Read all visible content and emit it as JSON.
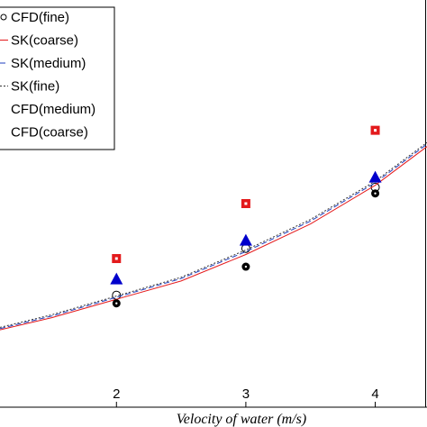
{
  "chart_data": {
    "type": "line",
    "xlabel": "Velocity of water (m/s)",
    "ylabel": "",
    "xlim": [
      1.1,
      4.4
    ],
    "ylim": [
      0,
      1
    ],
    "x_ticks": [
      2,
      3,
      4
    ],
    "grid": false,
    "legend_position": "top-left",
    "series": [
      {
        "name": "CFD(fine)",
        "kind": "markers",
        "marker": "circle-open",
        "color": "#000000",
        "x": [
          2,
          3,
          4
        ],
        "y": [
          0.275,
          0.39,
          0.54
        ]
      },
      {
        "name": "SK(coarse)",
        "kind": "line",
        "dash": "solid",
        "color": "#e41a1c",
        "x": [
          1.1,
          1.5,
          2,
          2.5,
          3,
          3.5,
          4,
          4.4
        ],
        "y": [
          0.19,
          0.22,
          0.265,
          0.31,
          0.375,
          0.45,
          0.545,
          0.64
        ]
      },
      {
        "name": "SK(medium)",
        "kind": "line",
        "dash": "dash",
        "color": "#1f3fbf",
        "x": [
          1.1,
          1.5,
          2,
          2.5,
          3,
          3.5,
          4,
          4.4
        ],
        "y": [
          0.193,
          0.224,
          0.27,
          0.316,
          0.382,
          0.457,
          0.551,
          0.646
        ]
      },
      {
        "name": "SK(fine)",
        "kind": "line",
        "dash": "dot",
        "color": "#333333",
        "x": [
          1.1,
          1.5,
          2,
          2.5,
          3,
          3.5,
          4,
          4.4
        ],
        "y": [
          0.196,
          0.227,
          0.273,
          0.319,
          0.386,
          0.461,
          0.555,
          0.65
        ]
      },
      {
        "name": "CFD(medium)",
        "kind": "markers",
        "marker": "triangle",
        "color": "#0000cc",
        "x": [
          2,
          3,
          4
        ],
        "y": [
          0.315,
          0.41,
          0.565
        ]
      },
      {
        "name": "CFD(coarse)",
        "kind": "markers",
        "marker": "square",
        "color": "#e31a1c",
        "x": [
          2,
          3,
          4
        ],
        "y": [
          0.365,
          0.5,
          0.68
        ]
      },
      {
        "name": "",
        "kind": "markers",
        "marker": "circle",
        "color": "#000000",
        "x": [
          2,
          3,
          4
        ],
        "y": [
          0.255,
          0.345,
          0.525
        ]
      }
    ]
  },
  "legend": {
    "items": [
      {
        "label": "CFD(fine)",
        "swatch": "circle-open",
        "color": "#000000"
      },
      {
        "label": "SK(coarse)",
        "swatch": "line-solid",
        "color": "#e41a1c"
      },
      {
        "label": "SK(medium)",
        "swatch": "line-dash",
        "color": "#1f3fbf"
      },
      {
        "label": "SK(fine)",
        "swatch": "line-dot",
        "color": "#333333"
      },
      {
        "label": "CFD(medium)",
        "swatch": "none",
        "color": "#000000"
      },
      {
        "label": "CFD(coarse)",
        "swatch": "none",
        "color": "#000000"
      }
    ]
  }
}
